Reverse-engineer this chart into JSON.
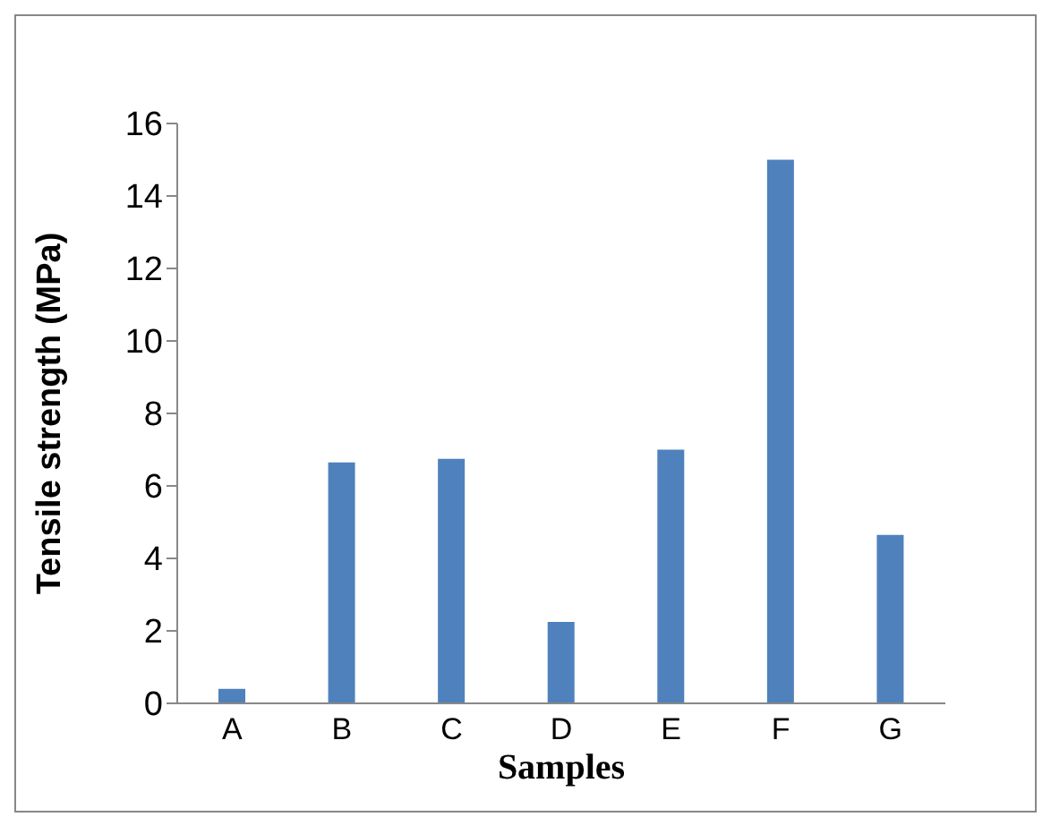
{
  "chart_data": {
    "type": "bar",
    "xlabel": "Samples",
    "ylabel": "Tensile strength (MPa)",
    "categories": [
      "A",
      "B",
      "C",
      "D",
      "E",
      "F",
      "G"
    ],
    "values": [
      0.4,
      6.65,
      6.75,
      2.25,
      7.0,
      15.0,
      4.65
    ],
    "color": "#4f81bd",
    "ylim": [
      0,
      16
    ],
    "yticks": [
      0,
      2,
      4,
      6,
      8,
      10,
      12,
      14,
      16
    ],
    "grid": false,
    "legend": false
  }
}
